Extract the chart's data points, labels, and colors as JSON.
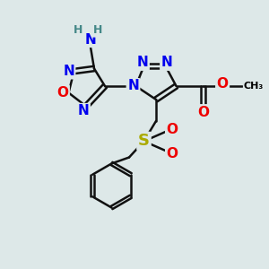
{
  "background_color": "#dde8e8",
  "atom_colors": {
    "N": "#0000EE",
    "O": "#EE0000",
    "S": "#AAAA00",
    "C": "#000000",
    "H": "#448888"
  },
  "bond_color": "#111111",
  "figsize": [
    3.0,
    3.0
  ],
  "dpi": 100,
  "xlim": [
    0,
    10
  ],
  "ylim": [
    0,
    10
  ]
}
